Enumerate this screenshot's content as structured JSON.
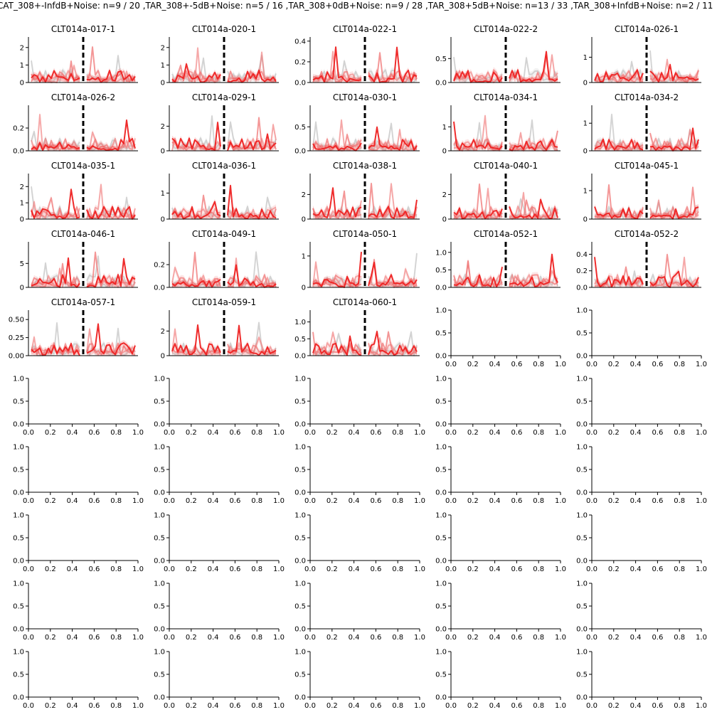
{
  "figure": {
    "suptitle": "CAT_308+-InfdB+Noise: n=9 / 20 ,TAR_308+-5dB+Noise: n=5 / 16 ,TAR_308+0dB+Noise: n=9 / 28 ,TAR_308+5dB+Noise: n=13 / 33 ,TAR_308+InfdB+Noise: n=2 / 11"
  },
  "colors": {
    "bold_trace": "#ee2222",
    "light_trace": "#f07a7a",
    "gray_trace": "#b8b8b8",
    "divider": "#000000",
    "axis": "#000000"
  },
  "chart_data": [
    {
      "type": "line",
      "title": "CLT014a-017-1",
      "ylim": [
        0,
        2.6
      ],
      "yticks": [
        "0",
        "1",
        "2"
      ],
      "yvals": [
        0,
        1,
        2
      ]
    },
    {
      "type": "line",
      "title": "CLT014a-020-1",
      "ylim": [
        0,
        2.6
      ],
      "yticks": [
        "0",
        "1",
        "2"
      ],
      "yvals": [
        0,
        1,
        2
      ]
    },
    {
      "type": "line",
      "title": "CLT014a-022-1",
      "ylim": [
        0,
        0.44
      ],
      "yticks": [
        "0.0",
        "0.2",
        "0.4"
      ],
      "yvals": [
        0,
        0.2,
        0.4
      ]
    },
    {
      "type": "line",
      "title": "CLT014a-022-2",
      "ylim": [
        0,
        0.95
      ],
      "yticks": [
        "0.0",
        "0.5"
      ],
      "yvals": [
        0,
        0.5
      ]
    },
    {
      "type": "line",
      "title": "CLT014a-026-1",
      "ylim": [
        0,
        1.8
      ],
      "yticks": [
        "0",
        "1"
      ],
      "yvals": [
        0,
        1
      ]
    },
    {
      "type": "line",
      "title": "CLT014a-026-2",
      "ylim": [
        0,
        0.4
      ],
      "yticks": [
        "0.0",
        "0.2"
      ],
      "yvals": [
        0,
        0.2
      ]
    },
    {
      "type": "line",
      "title": "CLT014a-029-1",
      "ylim": [
        0,
        3.7
      ],
      "yticks": [
        "0",
        "2"
      ],
      "yvals": [
        0,
        2
      ]
    },
    {
      "type": "line",
      "title": "CLT014a-030-1",
      "ylim": [
        0,
        0.95
      ],
      "yticks": [
        "0.0",
        "0.5"
      ],
      "yvals": [
        0,
        0.5
      ]
    },
    {
      "type": "line",
      "title": "CLT014a-034-1",
      "ylim": [
        0,
        1.9
      ],
      "yticks": [
        "0",
        "1"
      ],
      "yvals": [
        0,
        1
      ]
    },
    {
      "type": "line",
      "title": "CLT014a-034-2",
      "ylim": [
        0,
        1.65
      ],
      "yticks": [
        "0",
        "1"
      ],
      "yvals": [
        0,
        1
      ]
    },
    {
      "type": "line",
      "title": "CLT014a-035-1",
      "ylim": [
        0,
        2.8
      ],
      "yticks": [
        "0",
        "1",
        "2"
      ],
      "yvals": [
        0,
        1,
        2
      ]
    },
    {
      "type": "line",
      "title": "CLT014a-036-1",
      "ylim": [
        0,
        1.75
      ],
      "yticks": [
        "0",
        "1"
      ],
      "yvals": [
        0,
        1
      ]
    },
    {
      "type": "line",
      "title": "CLT014a-038-1",
      "ylim": [
        0,
        3.7
      ],
      "yticks": [
        "0",
        "2"
      ],
      "yvals": [
        0,
        2
      ]
    },
    {
      "type": "line",
      "title": "CLT014a-040-1",
      "ylim": [
        0,
        3.7
      ],
      "yticks": [
        "0",
        "2"
      ],
      "yvals": [
        0,
        2
      ]
    },
    {
      "type": "line",
      "title": "CLT014a-045-1",
      "ylim": [
        0,
        1.6
      ],
      "yticks": [
        "0",
        "1"
      ],
      "yvals": [
        0,
        1
      ]
    },
    {
      "type": "line",
      "title": "CLT014a-046-1",
      "ylim": [
        0,
        9.5
      ],
      "yticks": [
        "0",
        "5"
      ],
      "yvals": [
        0,
        5
      ]
    },
    {
      "type": "line",
      "title": "CLT014a-049-1",
      "ylim": [
        0,
        0.4
      ],
      "yticks": [
        "0.0",
        "0.2"
      ],
      "yvals": [
        0,
        0.2
      ]
    },
    {
      "type": "line",
      "title": "CLT014a-050-1",
      "ylim": [
        0,
        1.45
      ],
      "yticks": [
        "0",
        "1"
      ],
      "yvals": [
        0,
        1
      ]
    },
    {
      "type": "line",
      "title": "CLT014a-052-1",
      "ylim": [
        0,
        1.3
      ],
      "yticks": [
        "0.0",
        "0.5",
        "1.0"
      ],
      "yvals": [
        0,
        0.5,
        1.0
      ]
    },
    {
      "type": "line",
      "title": "CLT014a-052-2",
      "ylim": [
        0,
        0.55
      ],
      "yticks": [
        "0.0",
        "0.2",
        "0.4"
      ],
      "yvals": [
        0,
        0.2,
        0.4
      ]
    },
    {
      "type": "line",
      "title": "CLT014a-057-1",
      "ylim": [
        0,
        0.63
      ],
      "yticks": [
        "0.00",
        "0.25",
        "0.50"
      ],
      "yvals": [
        0,
        0.25,
        0.5
      ]
    },
    {
      "type": "line",
      "title": "CLT014a-059-1",
      "ylim": [
        0,
        3.7
      ],
      "yticks": [
        "0",
        "2"
      ],
      "yvals": [
        0,
        2
      ]
    },
    {
      "type": "line",
      "title": "CLT014a-060-1",
      "ylim": [
        0,
        1.35
      ],
      "yticks": [
        "0.0",
        "0.5",
        "1.0"
      ],
      "yvals": [
        0,
        0.5,
        1.0
      ]
    }
  ],
  "empty_axes": {
    "count": 27,
    "xticks": [
      "0.0",
      "0.2",
      "0.4",
      "0.6",
      "0.8",
      "1.0"
    ],
    "yticks": [
      "0.0",
      "0.5",
      "1.0"
    ]
  }
}
